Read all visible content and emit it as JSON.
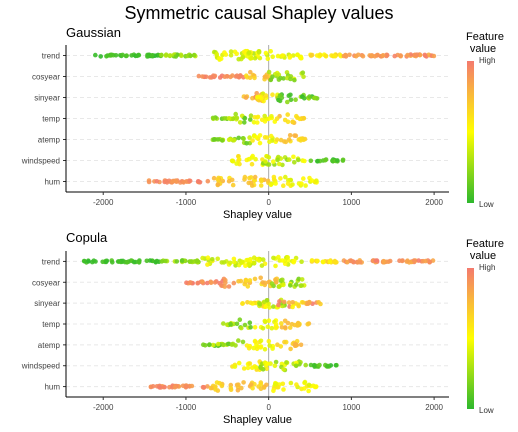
{
  "title": "Symmetric causal Shapley values",
  "colors": {
    "low": "#2db82d",
    "mid": "#ffff00",
    "high": "#f47a6e",
    "zero_line": "#aaaaaa",
    "grid": "#e8e8e8"
  },
  "chart_data": [
    {
      "type": "scatter",
      "subtitle": "Gaussian",
      "features": [
        "trend",
        "cosyear",
        "sinyear",
        "temp",
        "atemp",
        "windspeed",
        "hum"
      ],
      "xlabel": "Shapley value",
      "xlim": [
        -2450,
        2180
      ],
      "xticks": [
        -2000,
        -1000,
        0,
        1000,
        2000
      ],
      "legend": {
        "title_line1": "Feature",
        "title_line2": "value",
        "high": "High",
        "low": "Low",
        "placement": "right"
      },
      "series": [
        {
          "feature": "trend",
          "x_range": [
            -2100,
            2000
          ],
          "core": [
            -800,
            400
          ],
          "clusters": [
            {
              "x": [
                -2100,
                -1300
              ],
              "c": [
                0.0,
                0.1
              ]
            },
            {
              "x": [
                -1300,
                -800
              ],
              "c": [
                0.1,
                0.35
              ]
            },
            {
              "x": [
                -800,
                -100
              ],
              "c": [
                0.3,
                0.55
              ]
            },
            {
              "x": [
                -300,
                400
              ],
              "c": [
                0.35,
                0.55
              ]
            },
            {
              "x": [
                500,
                900
              ],
              "c": [
                0.5,
                0.7
              ]
            },
            {
              "x": [
                900,
                2000
              ],
              "c": [
                0.8,
                1.0
              ]
            }
          ]
        },
        {
          "feature": "cosyear",
          "x_range": [
            -850,
            450
          ],
          "core": [
            -250,
            450
          ],
          "clusters": [
            {
              "x": [
                -850,
                -300
              ],
              "c": [
                0.85,
                1.0
              ]
            },
            {
              "x": [
                -300,
                50
              ],
              "c": [
                0.6,
                0.8
              ]
            },
            {
              "x": [
                0,
                450
              ],
              "c": [
                0.15,
                0.5
              ]
            }
          ]
        },
        {
          "feature": "sinyear",
          "x_range": [
            -300,
            600
          ],
          "core": [
            -150,
            450
          ],
          "clusters": [
            {
              "x": [
                -300,
                0
              ],
              "c": [
                0.7,
                1.0
              ]
            },
            {
              "x": [
                -150,
                150
              ],
              "c": [
                0.4,
                0.7
              ]
            },
            {
              "x": [
                100,
                600
              ],
              "c": [
                0.0,
                0.3
              ]
            }
          ]
        },
        {
          "feature": "temp",
          "x_range": [
            -700,
            450
          ],
          "core": [
            -400,
            350
          ],
          "clusters": [
            {
              "x": [
                -700,
                -200
              ],
              "c": [
                0.1,
                0.4
              ]
            },
            {
              "x": [
                -200,
                100
              ],
              "c": [
                0.4,
                0.6
              ]
            },
            {
              "x": [
                100,
                450
              ],
              "c": [
                0.6,
                0.8
              ]
            }
          ]
        },
        {
          "feature": "atemp",
          "x_range": [
            -700,
            450
          ],
          "core": [
            -400,
            350
          ],
          "clusters": [
            {
              "x": [
                -700,
                -200
              ],
              "c": [
                0.1,
                0.4
              ]
            },
            {
              "x": [
                -200,
                100
              ],
              "c": [
                0.4,
                0.6
              ]
            },
            {
              "x": [
                100,
                450
              ],
              "c": [
                0.6,
                0.8
              ]
            }
          ]
        },
        {
          "feature": "windspeed",
          "x_range": [
            -700,
            900
          ],
          "core": [
            -400,
            400
          ],
          "clusters": [
            {
              "x": [
                -450,
                0
              ],
              "c": [
                0.45,
                0.65
              ]
            },
            {
              "x": [
                -100,
                450
              ],
              "c": [
                0.2,
                0.5
              ]
            },
            {
              "x": [
                500,
                900
              ],
              "c": [
                0.0,
                0.15
              ]
            }
          ]
        },
        {
          "feature": "hum",
          "x_range": [
            -1450,
            600
          ],
          "core": [
            -700,
            500
          ],
          "clusters": [
            {
              "x": [
                -1450,
                -700
              ],
              "c": [
                0.85,
                1.0
              ]
            },
            {
              "x": [
                -700,
                0
              ],
              "c": [
                0.6,
                0.8
              ]
            },
            {
              "x": [
                0,
                600
              ],
              "c": [
                0.4,
                0.6
              ]
            }
          ]
        }
      ]
    },
    {
      "type": "scatter",
      "subtitle": "Copula",
      "features": [
        "trend",
        "cosyear",
        "sinyear",
        "temp",
        "atemp",
        "windspeed",
        "hum"
      ],
      "xlabel": "Shapley value",
      "xlim": [
        -2450,
        2180
      ],
      "xticks": [
        -2000,
        -1000,
        0,
        1000,
        2000
      ],
      "legend": {
        "title_line1": "Feature",
        "title_line2": "value",
        "high": "High",
        "low": "Low",
        "placement": "right"
      },
      "series": [
        {
          "feature": "trend",
          "x_range": [
            -2250,
            2000
          ],
          "core": [
            -800,
            400
          ],
          "clusters": [
            {
              "x": [
                -2250,
                -1300
              ],
              "c": [
                0.0,
                0.1
              ]
            },
            {
              "x": [
                -1300,
                -800
              ],
              "c": [
                0.1,
                0.35
              ]
            },
            {
              "x": [
                -800,
                -100
              ],
              "c": [
                0.3,
                0.55
              ]
            },
            {
              "x": [
                -300,
                400
              ],
              "c": [
                0.35,
                0.55
              ]
            },
            {
              "x": [
                500,
                900
              ],
              "c": [
                0.5,
                0.7
              ]
            },
            {
              "x": [
                900,
                2000
              ],
              "c": [
                0.8,
                1.0
              ]
            }
          ]
        },
        {
          "feature": "cosyear",
          "x_range": [
            -1000,
            450
          ],
          "core": [
            -600,
            450
          ],
          "clusters": [
            {
              "x": [
                -1000,
                -400
              ],
              "c": [
                0.85,
                1.0
              ]
            },
            {
              "x": [
                -400,
                100
              ],
              "c": [
                0.6,
                0.8
              ]
            },
            {
              "x": [
                0,
                450
              ],
              "c": [
                0.15,
                0.5
              ]
            }
          ]
        },
        {
          "feature": "sinyear",
          "x_range": [
            -350,
            650
          ],
          "core": [
            -150,
            400
          ],
          "clusters": [
            {
              "x": [
                -350,
                0
              ],
              "c": [
                0.5,
                0.75
              ]
            },
            {
              "x": [
                -150,
                200
              ],
              "c": [
                0.2,
                0.5
              ]
            },
            {
              "x": [
                100,
                650
              ],
              "c": [
                0.5,
                1.0
              ]
            }
          ]
        },
        {
          "feature": "temp",
          "x_range": [
            -550,
            500
          ],
          "core": [
            -400,
            350
          ],
          "clusters": [
            {
              "x": [
                -550,
                -200
              ],
              "c": [
                0.1,
                0.4
              ]
            },
            {
              "x": [
                -200,
                100
              ],
              "c": [
                0.4,
                0.6
              ]
            },
            {
              "x": [
                100,
                500
              ],
              "c": [
                0.6,
                0.8
              ]
            }
          ]
        },
        {
          "feature": "atemp",
          "x_range": [
            -800,
            400
          ],
          "core": [
            -400,
            350
          ],
          "clusters": [
            {
              "x": [
                -800,
                -300
              ],
              "c": [
                0.1,
                0.4
              ]
            },
            {
              "x": [
                -300,
                100
              ],
              "c": [
                0.4,
                0.6
              ]
            },
            {
              "x": [
                100,
                400
              ],
              "c": [
                0.6,
                0.8
              ]
            }
          ]
        },
        {
          "feature": "windspeed",
          "x_range": [
            -700,
            850
          ],
          "core": [
            -400,
            400
          ],
          "clusters": [
            {
              "x": [
                -450,
                0
              ],
              "c": [
                0.45,
                0.65
              ]
            },
            {
              "x": [
                -100,
                450
              ],
              "c": [
                0.2,
                0.5
              ]
            },
            {
              "x": [
                500,
                850
              ],
              "c": [
                0.0,
                0.15
              ]
            }
          ]
        },
        {
          "feature": "hum",
          "x_range": [
            -1450,
            600
          ],
          "core": [
            -700,
            500
          ],
          "clusters": [
            {
              "x": [
                -1450,
                -700
              ],
              "c": [
                0.85,
                1.0
              ]
            },
            {
              "x": [
                -700,
                0
              ],
              "c": [
                0.6,
                0.8
              ]
            },
            {
              "x": [
                0,
                600
              ],
              "c": [
                0.4,
                0.6
              ]
            }
          ]
        }
      ]
    }
  ]
}
